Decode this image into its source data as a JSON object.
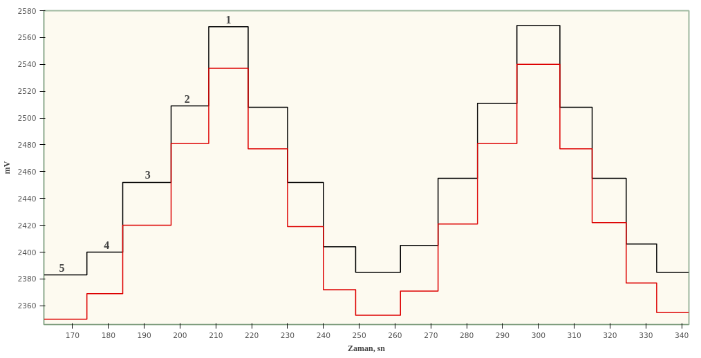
{
  "chart_data": {
    "type": "step",
    "xlabel": "Zaman, sn",
    "ylabel": "mV",
    "x": [
      162,
      174,
      184,
      197.5,
      208,
      219,
      230,
      240,
      249,
      261.5,
      272,
      283,
      294,
      306,
      315,
      324.5,
      333,
      342
    ],
    "series": [
      {
        "color": "#000000",
        "values": [
          2383,
          2400,
          2452,
          2509,
          2568,
          2508,
          2452,
          2404,
          2385,
          2405,
          2455,
          2511,
          2569,
          2508,
          2455,
          2406,
          2385,
          2385
        ]
      },
      {
        "color": "#dd0000",
        "values": [
          2350,
          2369,
          2420,
          2481,
          2537,
          2477,
          2419,
          2372,
          2353,
          2371,
          2421,
          2481,
          2540,
          2477,
          2422,
          2377,
          2355,
          2355
        ]
      }
    ],
    "annotations": [
      {
        "text": "1",
        "x": 213.5,
        "y": 2568
      },
      {
        "text": "2",
        "x": 202,
        "y": 2509
      },
      {
        "text": "3",
        "x": 191,
        "y": 2452
      },
      {
        "text": "4",
        "x": 179.5,
        "y": 2400
      },
      {
        "text": "5",
        "x": 167,
        "y": 2383
      }
    ],
    "xlim": [
      162,
      342
    ],
    "ylim": [
      2346,
      2580
    ],
    "xticks": [
      170,
      180,
      190,
      200,
      210,
      220,
      230,
      240,
      250,
      260,
      270,
      280,
      290,
      300,
      310,
      320,
      330,
      340
    ],
    "yticks": [
      2360,
      2380,
      2400,
      2420,
      2440,
      2460,
      2480,
      2500,
      2520,
      2540,
      2560,
      2580
    ],
    "grid": false
  }
}
